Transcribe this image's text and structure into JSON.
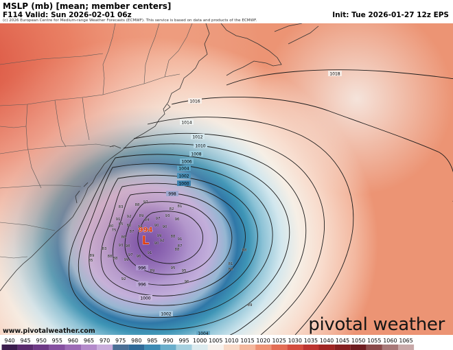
{
  "header": {
    "title": "MSLP (mb) [mean; member centers]",
    "valid": "F114 Valid: Sun 2026-02-01 06z",
    "init": "Init: Tue 2026-01-27 12z EPS",
    "copyright": "(c) 2026 European Centre for Medium-range Weather Forecasts (ECMWF). This service is based on data and products of the ECMWF."
  },
  "watermark": {
    "site": "www.pivotalweather.com",
    "brand": "pivotal weather"
  },
  "low_center": {
    "value": "994",
    "symbol": "L"
  },
  "isobars": [
    {
      "value": "1018"
    },
    {
      "value": "1016"
    },
    {
      "value": "1014"
    },
    {
      "value": "1012"
    },
    {
      "value": "1010"
    },
    {
      "value": "1008"
    },
    {
      "value": "1006"
    },
    {
      "value": "1004"
    },
    {
      "value": "1002"
    },
    {
      "value": "1000"
    },
    {
      "value": "998"
    },
    {
      "value": "996"
    }
  ],
  "member_centers": [
    "83",
    "97",
    "88",
    "92",
    "91",
    "85",
    "80",
    "75",
    "89",
    "84",
    "97",
    "93",
    "81",
    "82",
    "96",
    "90",
    "94",
    "90",
    "95",
    "86",
    "87",
    "86",
    "93",
    "98",
    "92",
    "88",
    "91",
    "99",
    "90",
    "87",
    "88",
    "83",
    "89",
    "85",
    "88",
    "88",
    "97",
    "99",
    "96",
    "91",
    "95",
    "96",
    "92",
    "89",
    "95",
    "88",
    "81",
    "86",
    "89"
  ],
  "colorbar": {
    "labels": [
      "940",
      "945",
      "950",
      "955",
      "960",
      "965",
      "970",
      "975",
      "980",
      "985",
      "990",
      "995",
      "1000",
      "1005",
      "1010",
      "1015",
      "1020",
      "1025",
      "1030",
      "1035",
      "1040",
      "1045",
      "1050",
      "1055",
      "1060",
      "1065"
    ]
  },
  "colors": {
    "low_label": "#e04010",
    "contour": "#1a1a1a",
    "coast": "#333333",
    "border": "#555555"
  }
}
